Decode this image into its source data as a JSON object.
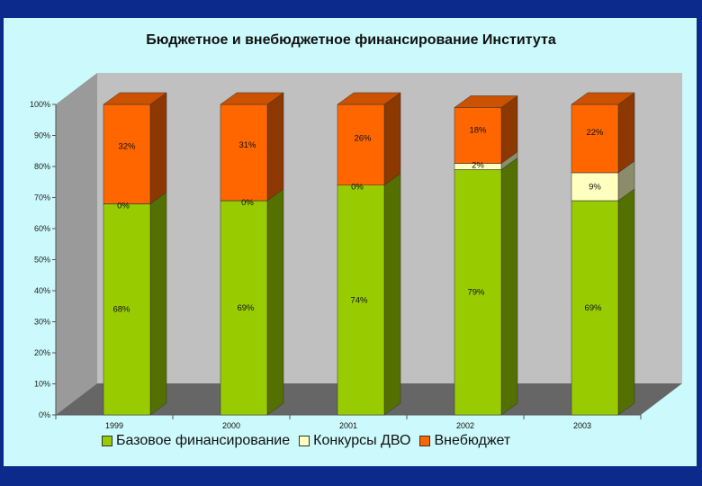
{
  "chart_data": {
    "type": "bar",
    "stacked": true,
    "three_d": true,
    "title": "Бюджетное и внебюджетное финансирование  Института",
    "categories": [
      "1999",
      "2000",
      "2001",
      "2002",
      "2003"
    ],
    "series": [
      {
        "name": "Базовое финансирование",
        "color": "#99cc00",
        "values": [
          68,
          69,
          74,
          79,
          69
        ],
        "labels": [
          "68%",
          "69%",
          "74%",
          "79%",
          "69%"
        ]
      },
      {
        "name": "Конкурсы ДВО",
        "color": "#ffffc0",
        "values": [
          0,
          0,
          0,
          2,
          9
        ],
        "labels": [
          "0%",
          "0%",
          "0%",
          "2%",
          "9%"
        ]
      },
      {
        "name": "Внебюджет",
        "color": "#ff6600",
        "values": [
          32,
          31,
          26,
          18,
          22
        ],
        "labels": [
          "32%",
          "31%",
          "26%",
          "18%",
          "22%"
        ]
      }
    ],
    "y_ticks": [
      "0%",
      "10%",
      "20%",
      "30%",
      "40%",
      "50%",
      "60%",
      "70%",
      "80%",
      "90%",
      "100%"
    ],
    "ylim": [
      0,
      100
    ],
    "grid": false,
    "legend_position": "bottom"
  }
}
